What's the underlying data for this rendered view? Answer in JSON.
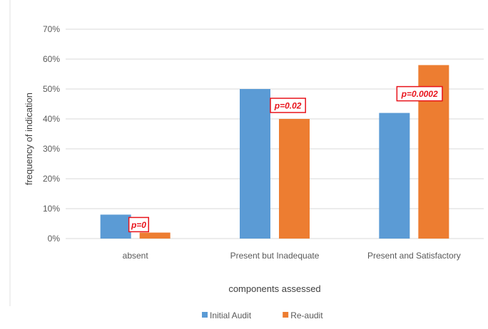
{
  "chart_data": {
    "type": "bar",
    "categories": [
      "absent",
      "Present but Inadequate",
      "Present and Satisfactory"
    ],
    "series": [
      {
        "name": "Initial Audit",
        "values": [
          8,
          50,
          42
        ],
        "color": "#5b9bd5"
      },
      {
        "name": "Re-audit",
        "values": [
          2,
          40,
          58
        ],
        "color": "#ed7d31"
      }
    ],
    "xlabel": "components assessed",
    "ylabel": "frequency of indication",
    "ylim": [
      0,
      70
    ],
    "yticks": [
      0,
      10,
      20,
      30,
      40,
      50,
      60,
      70
    ],
    "ytick_labels": [
      "0%",
      "10%",
      "20%",
      "30%",
      "40%",
      "50%",
      "60%",
      "70%"
    ],
    "grid": true,
    "legend_position": "bottom",
    "annotations": [
      {
        "text": "p=0",
        "category": 0
      },
      {
        "text": "p=0.02",
        "category": 1
      },
      {
        "text": "p=0.0002",
        "category": 2
      }
    ],
    "annotation_color": "#e8131b",
    "grid_color": "#d9d9d9"
  }
}
